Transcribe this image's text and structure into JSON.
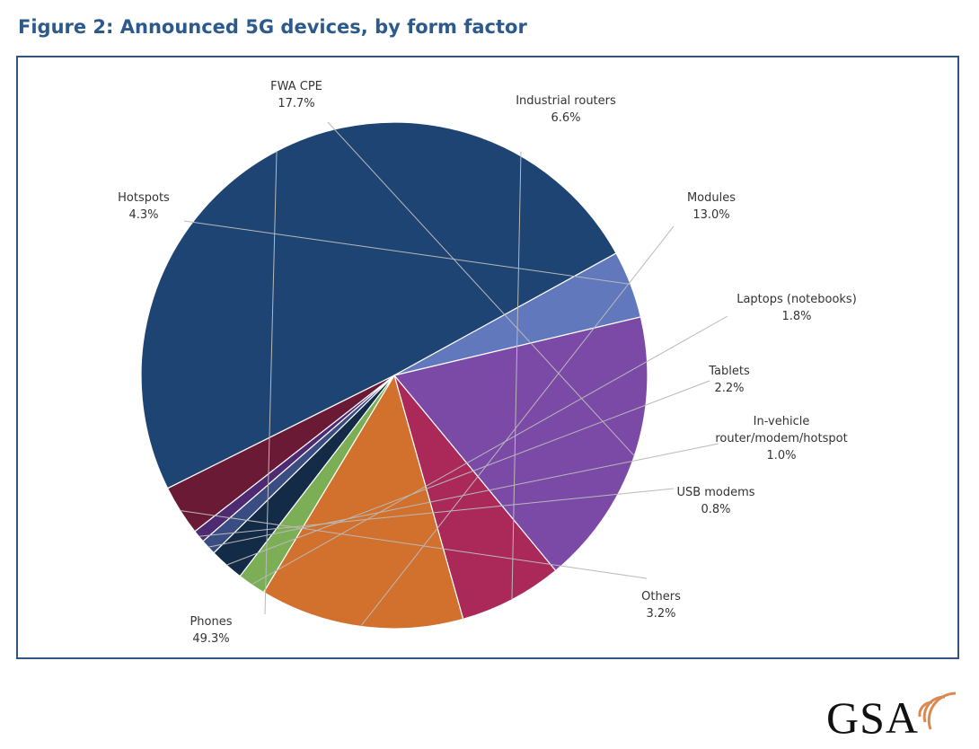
{
  "figure": {
    "title": "Figure 2: Announced 5G devices, by form factor"
  },
  "logo": {
    "text": "GSA",
    "arc_color": "#d98a52"
  },
  "chart_data": {
    "type": "pie",
    "title": "Figure 2: Announced 5G devices, by form factor",
    "slices": [
      {
        "label": "Phones",
        "value": 49.3,
        "value_label": "49.3%",
        "color": "#1d4473"
      },
      {
        "label": "Hotspots",
        "value": 4.3,
        "value_label": "4.3%",
        "color": "#6178bd"
      },
      {
        "label": "FWA CPE",
        "value": 17.7,
        "value_label": "17.7%",
        "color": "#7b4aa7"
      },
      {
        "label": "Industrial routers",
        "value": 6.6,
        "value_label": "6.6%",
        "color": "#aa2959"
      },
      {
        "label": "Modules",
        "value": 13.0,
        "value_label": "13.0%",
        "color": "#d2712d"
      },
      {
        "label": "Laptops (notebooks)",
        "value": 1.8,
        "value_label": "1.8%",
        "color": "#7bae55"
      },
      {
        "label": "Tablets",
        "value": 2.2,
        "value_label": "2.2%",
        "color": "#132b47"
      },
      {
        "label": "In-vehicle router/modem/hotspot",
        "label_lines": [
          "In-vehicle",
          "router/modem/hotspot"
        ],
        "value": 1.0,
        "value_label": "1.0%",
        "color": "#3a4d83"
      },
      {
        "label": "USB modems",
        "value": 0.8,
        "value_label": "0.8%",
        "color": "#4e2a72"
      },
      {
        "label": "Others",
        "value": 3.2,
        "value_label": "3.2%",
        "color": "#6a1a35"
      }
    ]
  }
}
